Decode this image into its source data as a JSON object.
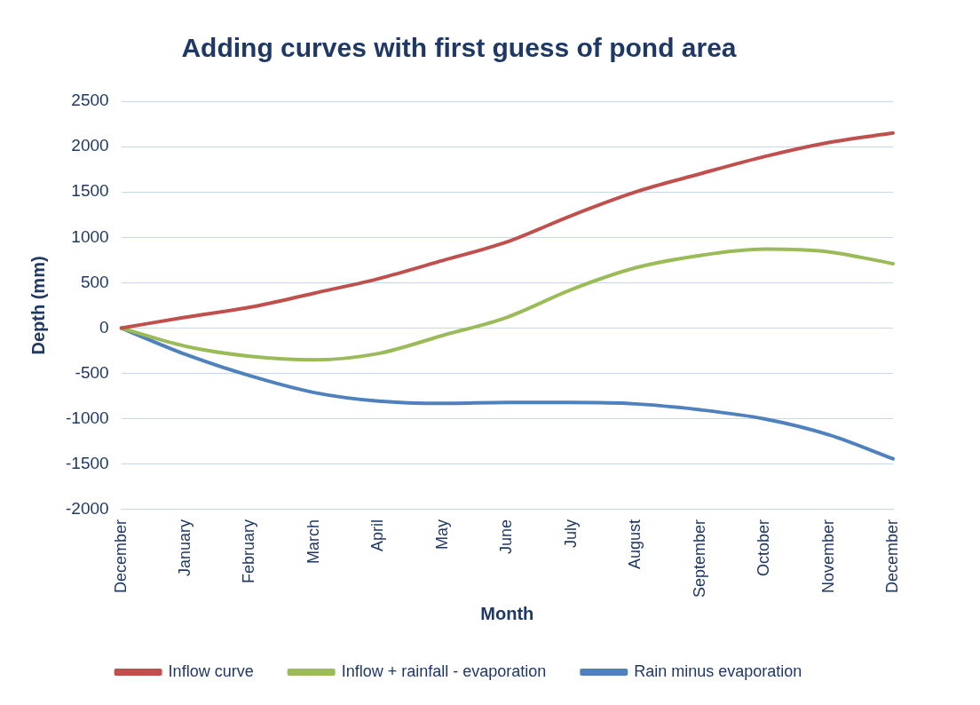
{
  "chart_data": {
    "type": "line",
    "title": "Adding curves with first guess of pond area",
    "xlabel": "Month",
    "ylabel": "Depth (mm)",
    "categories": [
      "December",
      "January",
      "February",
      "March",
      "April",
      "May",
      "June",
      "July",
      "August",
      "September",
      "October",
      "November",
      "December"
    ],
    "series": [
      {
        "name": "Inflow curve",
        "color": "#c0504d",
        "values": [
          0,
          120,
          230,
          385,
          545,
          745,
          950,
          1240,
          1500,
          1700,
          1890,
          2045,
          2150
        ]
      },
      {
        "name": "Inflow + rainfall - evaporation",
        "color": "#9bbb59",
        "values": [
          0,
          -200,
          -310,
          -350,
          -280,
          -80,
          120,
          425,
          665,
          800,
          870,
          840,
          710
        ]
      },
      {
        "name": "Rain minus evaporation",
        "color": "#4f81bd",
        "values": [
          0,
          -290,
          -525,
          -710,
          -805,
          -830,
          -820,
          -820,
          -835,
          -900,
          -1000,
          -1175,
          -1440
        ]
      }
    ],
    "ylim": [
      -2000,
      2500
    ],
    "yticks": [
      -2000,
      -1500,
      -1000,
      -500,
      0,
      500,
      1000,
      1500,
      2000,
      2500
    ],
    "grid": "y",
    "legend": "bottom",
    "marker": "none",
    "line_style": "solid"
  }
}
